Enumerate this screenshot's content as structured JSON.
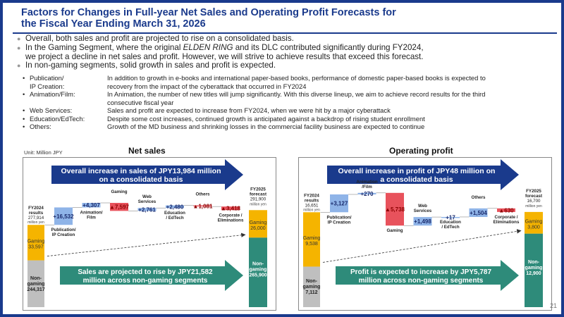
{
  "header": {
    "title_line1": "Factors for Changes in Full-year Net Sales and Operating Profit Forecasts for",
    "title_line2": "the Fiscal Year Ending March 31, 2026"
  },
  "bullets": {
    "b1": "Overall, both sales and profit are projected to rise on a consolidated basis.",
    "b2_a": "In the Gaming Segment, where the original ",
    "b2_em": "ELDEN RING",
    "b2_b": " and its DLC contributed significantly during FY2024,",
    "b2_c": "we project a decline in net sales and profit. However, we will strive to achieve results that exceed this forecast.",
    "b3": "In non-gaming segments, solid growth in sales and profit is expected."
  },
  "segments": [
    {
      "key1": "Publication/",
      "key2": "IP Creation:",
      "text1": "In addition to growth in e-books and international paper-based books, performance of domestic paper-based books is expected to",
      "text2": "recovery from the impact of the cyberattack that occurred in FY2024"
    },
    {
      "key1": "Animation/Film:",
      "key2": "",
      "text1": "In Animation, the number of new titles will jump significantly. With this diverse lineup, we aim to achieve record results for the third",
      "text2": "consecutive fiscal year"
    },
    {
      "key1": "Web Services:",
      "key2": "",
      "text1": "Sales and profit are expected to increase from FY2024, when we were hit by a major cyberattack",
      "text2": ""
    },
    {
      "key1": "Education/EdTech:",
      "key2": "",
      "text1": "Despite some cost increases, continued growth is anticipated against a backdrop of rising student enrollment",
      "text2": ""
    },
    {
      "key1": "Others:",
      "key2": "",
      "text1": "Growth of the MD business and shrinking losses in the commercial facility business are expected to continue",
      "text2": ""
    }
  ],
  "unit": "Unit: Million JPY",
  "page_number": "21",
  "colors": {
    "navy": "#1a3a8c",
    "teal": "#2e8b7a",
    "orange": "#f5b400",
    "gray": "#bfbfbf",
    "blue_bar": "#8fb4e8",
    "red_bar": "#e8525c",
    "tan": "#c9a86a"
  },
  "chart_data": [
    {
      "type": "bar",
      "title": "Net sales",
      "banner_top": "Overall increase in sales of JPY13,984 million on a consolidated basis",
      "banner_top_1": "Overall increase in sales of JPY13,984 million",
      "banner_top_2": "on a consolidated basis",
      "banner_bottom_1": "Sales are projected to rise by JPY21,582",
      "banner_bottom_2": "million across non-gaming segments",
      "start": {
        "label1": "FY2024",
        "label2": "results",
        "label3": "277,914",
        "label4": "million yen",
        "gaming": 33597,
        "non_gaming": 244317,
        "gaming_label": "Gaming",
        "gaming_value": "33,597",
        "non_gaming_label1": "Non-",
        "non_gaming_label2": "gaming",
        "non_gaming_value": "244,317"
      },
      "steps": [
        {
          "label1": "Publication/",
          "label2": "IP Creation",
          "value": 16532,
          "text": "+16,532"
        },
        {
          "label1": "Animation/",
          "label2": "Film",
          "value": 4307,
          "text": "+4,307"
        },
        {
          "label1": "Gaming",
          "label2": "",
          "value": -7597,
          "text": "▲7,597"
        },
        {
          "label1": "Web",
          "label2": "Services",
          "value": 2761,
          "text": "+2,761"
        },
        {
          "label1": "Education",
          "label2": "/ EdTech",
          "value": 2480,
          "text": "+2,480"
        },
        {
          "label1": "Others",
          "label2": "",
          "value": -1081,
          "text": "▲1,081"
        },
        {
          "label1": "Corporate /",
          "label2": "Eliminations",
          "value": -3418,
          "text": "▲3,418"
        }
      ],
      "end": {
        "label1": "FY2025",
        "label2": "forecast",
        "label3": "291,900",
        "label4": "million yen",
        "gaming": 26000,
        "non_gaming": 265900,
        "gaming_label": "Gaming",
        "gaming_value": "26,000",
        "non_gaming_label1": "Non-",
        "non_gaming_label2": "gaming",
        "non_gaming_value": "265,900"
      }
    },
    {
      "type": "bar",
      "title": "Operating profit",
      "banner_top_1": "Overall increase in profit of JPY48 million on",
      "banner_top_2": "a consolidated basis",
      "banner_bottom_1": "Profit is expected to increase by JPY5,787",
      "banner_bottom_2": "million across non-gaming segments",
      "start": {
        "label1": "FY2024",
        "label2": "results",
        "label3": "16,651",
        "label4": "million yen",
        "gaming": 9538,
        "non_gaming": 7112,
        "gaming_label": "Gaming",
        "gaming_value": "9,538",
        "non_gaming_label1": "Non-",
        "non_gaming_label2": "gaming",
        "non_gaming_value": "7,112"
      },
      "steps": [
        {
          "label1": "Publication/",
          "label2": "IP Creation",
          "value": 3127,
          "text": "+3,127"
        },
        {
          "label1": "Animation",
          "label2": "/Film",
          "value": 270,
          "text": "+270"
        },
        {
          "label1": "Gaming",
          "label2": "",
          "value": -5738,
          "text": "▲5,738"
        },
        {
          "label1": "Web",
          "label2": "Services",
          "value": 1498,
          "text": "+1,498"
        },
        {
          "label1": "Education",
          "label2": "/ EdTech",
          "value": 17,
          "text": "+17"
        },
        {
          "label1": "Others",
          "label2": "",
          "value": 1504,
          "text": "+1,504"
        },
        {
          "label1": "Corporate /",
          "label2": "Eliminations",
          "value": -630,
          "text": "▲630"
        }
      ],
      "end": {
        "label1": "FY2025",
        "label2": "forecast",
        "label3": "16,700",
        "label4": "million yen",
        "gaming": 3800,
        "non_gaming": 12900,
        "gaming_label": "Gaming",
        "gaming_value": "3,800",
        "non_gaming_label1": "Non-",
        "non_gaming_label2": "gaming",
        "non_gaming_value": "12,900"
      }
    }
  ]
}
